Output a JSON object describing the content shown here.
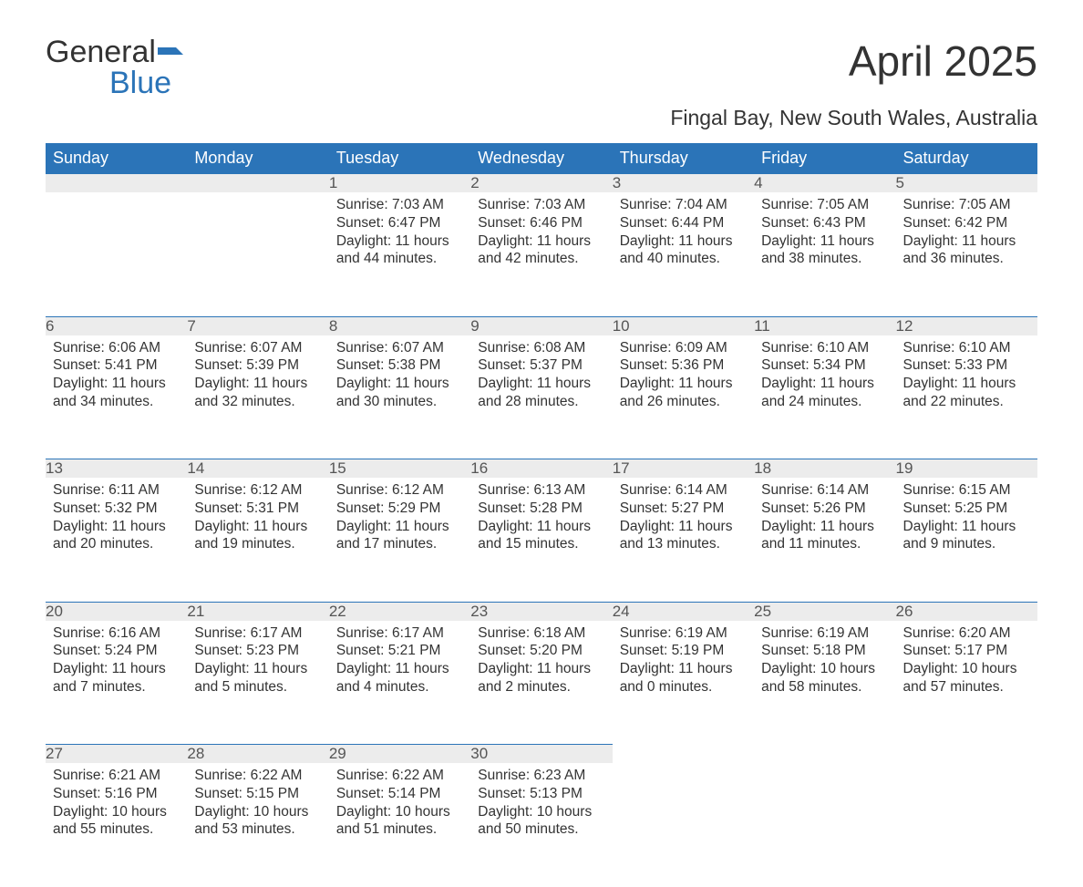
{
  "logo": {
    "word1": "General",
    "word2": "Blue"
  },
  "title": "April 2025",
  "subtitle": "Fingal Bay, New South Wales, Australia",
  "colors": {
    "header_bg": "#2b74b8",
    "header_text": "#ffffff",
    "daynum_bg": "#ececec",
    "daynum_border": "#2b74b8",
    "text": "#333333",
    "logo_blue": "#2b74b8"
  },
  "day_headers": [
    "Sunday",
    "Monday",
    "Tuesday",
    "Wednesday",
    "Thursday",
    "Friday",
    "Saturday"
  ],
  "weeks": [
    [
      null,
      null,
      {
        "n": "1",
        "sunrise": "7:03 AM",
        "sunset": "6:47 PM",
        "dl1": "Daylight: 11 hours",
        "dl2": "and 44 minutes."
      },
      {
        "n": "2",
        "sunrise": "7:03 AM",
        "sunset": "6:46 PM",
        "dl1": "Daylight: 11 hours",
        "dl2": "and 42 minutes."
      },
      {
        "n": "3",
        "sunrise": "7:04 AM",
        "sunset": "6:44 PM",
        "dl1": "Daylight: 11 hours",
        "dl2": "and 40 minutes."
      },
      {
        "n": "4",
        "sunrise": "7:05 AM",
        "sunset": "6:43 PM",
        "dl1": "Daylight: 11 hours",
        "dl2": "and 38 minutes."
      },
      {
        "n": "5",
        "sunrise": "7:05 AM",
        "sunset": "6:42 PM",
        "dl1": "Daylight: 11 hours",
        "dl2": "and 36 minutes."
      }
    ],
    [
      {
        "n": "6",
        "sunrise": "6:06 AM",
        "sunset": "5:41 PM",
        "dl1": "Daylight: 11 hours",
        "dl2": "and 34 minutes."
      },
      {
        "n": "7",
        "sunrise": "6:07 AM",
        "sunset": "5:39 PM",
        "dl1": "Daylight: 11 hours",
        "dl2": "and 32 minutes."
      },
      {
        "n": "8",
        "sunrise": "6:07 AM",
        "sunset": "5:38 PM",
        "dl1": "Daylight: 11 hours",
        "dl2": "and 30 minutes."
      },
      {
        "n": "9",
        "sunrise": "6:08 AM",
        "sunset": "5:37 PM",
        "dl1": "Daylight: 11 hours",
        "dl2": "and 28 minutes."
      },
      {
        "n": "10",
        "sunrise": "6:09 AM",
        "sunset": "5:36 PM",
        "dl1": "Daylight: 11 hours",
        "dl2": "and 26 minutes."
      },
      {
        "n": "11",
        "sunrise": "6:10 AM",
        "sunset": "5:34 PM",
        "dl1": "Daylight: 11 hours",
        "dl2": "and 24 minutes."
      },
      {
        "n": "12",
        "sunrise": "6:10 AM",
        "sunset": "5:33 PM",
        "dl1": "Daylight: 11 hours",
        "dl2": "and 22 minutes."
      }
    ],
    [
      {
        "n": "13",
        "sunrise": "6:11 AM",
        "sunset": "5:32 PM",
        "dl1": "Daylight: 11 hours",
        "dl2": "and 20 minutes."
      },
      {
        "n": "14",
        "sunrise": "6:12 AM",
        "sunset": "5:31 PM",
        "dl1": "Daylight: 11 hours",
        "dl2": "and 19 minutes."
      },
      {
        "n": "15",
        "sunrise": "6:12 AM",
        "sunset": "5:29 PM",
        "dl1": "Daylight: 11 hours",
        "dl2": "and 17 minutes."
      },
      {
        "n": "16",
        "sunrise": "6:13 AM",
        "sunset": "5:28 PM",
        "dl1": "Daylight: 11 hours",
        "dl2": "and 15 minutes."
      },
      {
        "n": "17",
        "sunrise": "6:14 AM",
        "sunset": "5:27 PM",
        "dl1": "Daylight: 11 hours",
        "dl2": "and 13 minutes."
      },
      {
        "n": "18",
        "sunrise": "6:14 AM",
        "sunset": "5:26 PM",
        "dl1": "Daylight: 11 hours",
        "dl2": "and 11 minutes."
      },
      {
        "n": "19",
        "sunrise": "6:15 AM",
        "sunset": "5:25 PM",
        "dl1": "Daylight: 11 hours",
        "dl2": "and 9 minutes."
      }
    ],
    [
      {
        "n": "20",
        "sunrise": "6:16 AM",
        "sunset": "5:24 PM",
        "dl1": "Daylight: 11 hours",
        "dl2": "and 7 minutes."
      },
      {
        "n": "21",
        "sunrise": "6:17 AM",
        "sunset": "5:23 PM",
        "dl1": "Daylight: 11 hours",
        "dl2": "and 5 minutes."
      },
      {
        "n": "22",
        "sunrise": "6:17 AM",
        "sunset": "5:21 PM",
        "dl1": "Daylight: 11 hours",
        "dl2": "and 4 minutes."
      },
      {
        "n": "23",
        "sunrise": "6:18 AM",
        "sunset": "5:20 PM",
        "dl1": "Daylight: 11 hours",
        "dl2": "and 2 minutes."
      },
      {
        "n": "24",
        "sunrise": "6:19 AM",
        "sunset": "5:19 PM",
        "dl1": "Daylight: 11 hours",
        "dl2": "and 0 minutes."
      },
      {
        "n": "25",
        "sunrise": "6:19 AM",
        "sunset": "5:18 PM",
        "dl1": "Daylight: 10 hours",
        "dl2": "and 58 minutes."
      },
      {
        "n": "26",
        "sunrise": "6:20 AM",
        "sunset": "5:17 PM",
        "dl1": "Daylight: 10 hours",
        "dl2": "and 57 minutes."
      }
    ],
    [
      {
        "n": "27",
        "sunrise": "6:21 AM",
        "sunset": "5:16 PM",
        "dl1": "Daylight: 10 hours",
        "dl2": "and 55 minutes."
      },
      {
        "n": "28",
        "sunrise": "6:22 AM",
        "sunset": "5:15 PM",
        "dl1": "Daylight: 10 hours",
        "dl2": "and 53 minutes."
      },
      {
        "n": "29",
        "sunrise": "6:22 AM",
        "sunset": "5:14 PM",
        "dl1": "Daylight: 10 hours",
        "dl2": "and 51 minutes."
      },
      {
        "n": "30",
        "sunrise": "6:23 AM",
        "sunset": "5:13 PM",
        "dl1": "Daylight: 10 hours",
        "dl2": "and 50 minutes."
      },
      null,
      null,
      null
    ]
  ],
  "labels": {
    "sunrise": "Sunrise: ",
    "sunset": "Sunset: "
  }
}
